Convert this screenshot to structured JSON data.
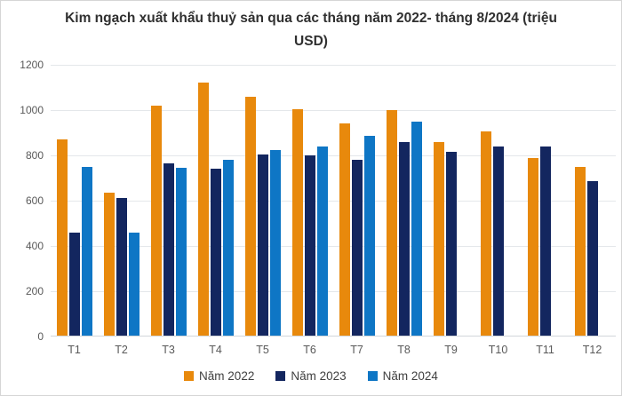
{
  "chart_data": {
    "type": "bar",
    "title": "Kim ngạch xuất khẩu thuỷ sản qua các tháng năm 2022- tháng 8/2024 (triệu USD)",
    "categories": [
      "T1",
      "T2",
      "T3",
      "T4",
      "T5",
      "T6",
      "T7",
      "T8",
      "T9",
      "T10",
      "T11",
      "T12"
    ],
    "series": [
      {
        "name": "Năm 2022",
        "color": "#e8890c",
        "values": [
          870,
          635,
          1020,
          1120,
          1060,
          1005,
          940,
          1000,
          860,
          905,
          790,
          750
        ]
      },
      {
        "name": "Năm 2023",
        "color": "#13265f",
        "values": [
          460,
          610,
          765,
          740,
          805,
          800,
          780,
          860,
          815,
          840,
          840,
          685
        ]
      },
      {
        "name": "Năm 2024",
        "color": "#0e76c5",
        "values": [
          750,
          460,
          745,
          780,
          825,
          840,
          885,
          950,
          null,
          null,
          null,
          null
        ]
      }
    ],
    "ylim": [
      0,
      1200
    ],
    "ytick_step": 200,
    "yticks": [
      "0",
      "200",
      "400",
      "600",
      "800",
      "1000",
      "1200"
    ],
    "grid": true,
    "legend_position": "bottom",
    "colors": {
      "title_text": "#303030",
      "axis_text": "#595959",
      "gridline": "#e4e7ea",
      "border": "#d6d6d6",
      "background": "#ffffff"
    }
  }
}
